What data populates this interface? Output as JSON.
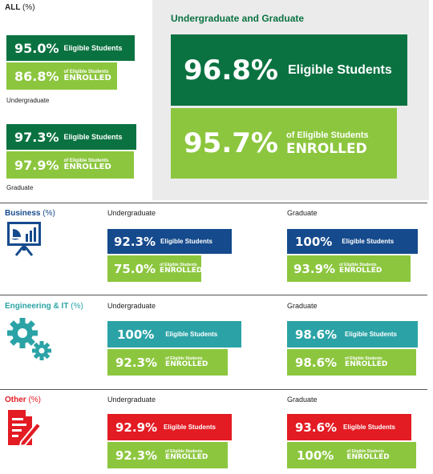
{
  "colors": {
    "dark_green": "#0a7241",
    "light_green": "#8cc63e",
    "blue": "#154a8c",
    "teal": "#2ba3a6",
    "red": "#e31b23",
    "panel_grey": "#ebebeb"
  },
  "all": {
    "title": "ALL",
    "unit": "(%)",
    "undergraduate": {
      "eligible": "95.0%",
      "enrolled": "86.8%",
      "caption": "Undergraduate"
    },
    "graduate": {
      "eligible": "97.3%",
      "enrolled": "97.9%",
      "caption": "Graduate"
    },
    "combined": {
      "title": "Undergraduate and Graduate",
      "eligible": "96.8%",
      "enrolled": "95.7%"
    }
  },
  "labels": {
    "eligible_students": "Eligible Students",
    "of_eligible_students": "of Eligible Students",
    "enrolled": "ENROLLED",
    "undergraduate": "Undergraduate",
    "graduate": "Graduate"
  },
  "sections": {
    "business": {
      "title": "Business",
      "unit": "(%)",
      "icon": "presentation-chart-icon",
      "undergraduate": {
        "eligible": "92.3%",
        "enrolled": "75.0%"
      },
      "graduate": {
        "eligible": "100%",
        "enrolled": "93.9%"
      }
    },
    "engineering": {
      "title": "Engineering & IT",
      "unit": "(%)",
      "icon": "gears-icon",
      "undergraduate": {
        "eligible": "100%",
        "enrolled": "92.3%"
      },
      "graduate": {
        "eligible": "98.6%",
        "enrolled": "98.6%"
      }
    },
    "other": {
      "title": "Other",
      "unit": "(%)",
      "icon": "document-pen-icon",
      "undergraduate": {
        "eligible": "92.9%",
        "enrolled": "92.3%"
      },
      "graduate": {
        "eligible": "93.6%",
        "enrolled": "100%"
      }
    }
  },
  "chart_data": {
    "type": "bar",
    "title": "",
    "categories": [
      "All",
      "Business",
      "Engineering & IT",
      "Other"
    ],
    "series": [
      {
        "name": "Undergraduate Eligible Students",
        "values": [
          95.0,
          92.3,
          100,
          92.9
        ]
      },
      {
        "name": "Undergraduate of Eligible Students ENROLLED",
        "values": [
          86.8,
          75.0,
          92.3,
          92.3
        ]
      },
      {
        "name": "Graduate Eligible Students",
        "values": [
          97.3,
          100,
          98.6,
          93.6
        ]
      },
      {
        "name": "Graduate of Eligible Students ENROLLED",
        "values": [
          97.9,
          93.9,
          98.6,
          100
        ]
      },
      {
        "name": "Undergraduate and Graduate Eligible Students",
        "values": [
          96.8,
          null,
          null,
          null
        ]
      },
      {
        "name": "Undergraduate and Graduate of Eligible Students ENROLLED",
        "values": [
          95.7,
          null,
          null,
          null
        ]
      }
    ],
    "unit": "%"
  }
}
